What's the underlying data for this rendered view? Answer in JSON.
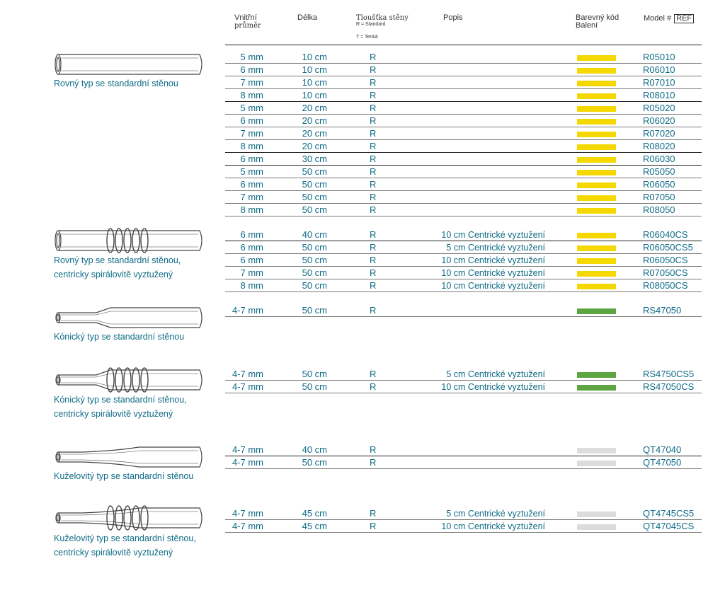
{
  "header": {
    "inner_diameter": [
      "Vnitřní",
      "průměr"
    ],
    "length": "Délka",
    "wall_thickness": "Tloušťka stěny",
    "wall_r": "R = Standard",
    "wall_t": "T = Tenká",
    "description": "Popis",
    "color_code": [
      "Barevný kód",
      "Balení"
    ],
    "model": "Model #",
    "ref": "REF"
  },
  "colors": {
    "yellow": "#f5d800",
    "green": "#5da542",
    "gray": "#dcdcdc",
    "text": "#0e6b86"
  },
  "groups": [
    {
      "icon": "straight-tube-icon",
      "label": [
        "Rovný typ se standardní stěnou"
      ],
      "rows": [
        {
          "dia": "5 mm",
          "len": "10 cm",
          "wall": "R",
          "desc": "",
          "color": "yellow",
          "model": "R05010"
        },
        {
          "dia": "6 mm",
          "len": "10 cm",
          "wall": "R",
          "desc": "",
          "color": "yellow",
          "model": "R06010"
        },
        {
          "dia": "7 mm",
          "len": "10 cm",
          "wall": "R",
          "desc": "",
          "color": "yellow",
          "model": "R07010"
        },
        {
          "dia": "8 mm",
          "len": "10 cm",
          "wall": "R",
          "desc": "",
          "color": "yellow",
          "model": "R08010"
        },
        {
          "dia": "5 mm",
          "len": "20 cm",
          "wall": "R",
          "desc": "",
          "color": "yellow",
          "model": "R05020"
        },
        {
          "dia": "6 mm",
          "len": "20 cm",
          "wall": "R",
          "desc": "",
          "color": "yellow",
          "model": "R06020"
        },
        {
          "dia": "7 mm",
          "len": "20 cm",
          "wall": "R",
          "desc": "",
          "color": "yellow",
          "model": "R07020"
        },
        {
          "dia": "8 mm",
          "len": "20 cm",
          "wall": "R",
          "desc": "",
          "color": "yellow",
          "model": "R08020"
        },
        {
          "dia": "6 mm",
          "len": "30 cm",
          "wall": "R",
          "desc": "",
          "color": "yellow",
          "model": "R06030"
        },
        {
          "dia": "5 mm",
          "len": "50 cm",
          "wall": "R",
          "desc": "",
          "color": "yellow",
          "model": "R05050"
        },
        {
          "dia": "6 mm",
          "len": "50 cm",
          "wall": "R",
          "desc": "",
          "color": "yellow",
          "model": "R06050"
        },
        {
          "dia": "7 mm",
          "len": "50 cm",
          "wall": "R",
          "desc": "",
          "color": "yellow",
          "model": "R07050"
        },
        {
          "dia": "8 mm",
          "len": "50 cm",
          "wall": "R",
          "desc": "",
          "color": "yellow",
          "model": "R08050"
        }
      ]
    },
    {
      "icon": "straight-spiral-tube-icon",
      "label": [
        "Rovný typ se standardní stěnou,",
        "centricky spirálovitě  vyztužený"
      ],
      "rows": [
        {
          "dia": "6 mm",
          "len": "40 cm",
          "wall": "R",
          "desc": "10 cm Centrické vyztužení",
          "color": "yellow",
          "model": "R06040CS"
        },
        {
          "dia": "6 mm",
          "len": "50 cm",
          "wall": "R",
          "desc": "5 cm  Centrické vyztužení",
          "color": "yellow",
          "model": "R06050CS5"
        },
        {
          "dia": "6 mm",
          "len": "50 cm",
          "wall": "R",
          "desc": "10 cm Centrické vyztužení",
          "color": "yellow",
          "model": "R06050CS"
        },
        {
          "dia": "7 mm",
          "len": "50 cm",
          "wall": "R",
          "desc": "10 cm Centrické vyztužení",
          "color": "yellow",
          "model": "R07050CS"
        },
        {
          "dia": "8 mm",
          "len": "50 cm",
          "wall": "R",
          "desc": "10 cm Centrické vyztužení",
          "color": "yellow",
          "model": "R08050CS"
        }
      ]
    },
    {
      "icon": "conical-tube-icon",
      "label": [
        "Kónický typ se standardní stěnou"
      ],
      "rows": [
        {
          "dia": "4-7 mm",
          "len": "50 cm",
          "wall": "R",
          "desc": "",
          "color": "green",
          "model": "RS47050"
        }
      ]
    },
    {
      "icon": "conical-spiral-tube-icon",
      "label": [
        "Kónický typ se standardní stěnou,",
        "centricky spirálovitě vyztužený"
      ],
      "rows": [
        {
          "dia": "4-7 mm",
          "len": "50 cm",
          "wall": "R",
          "desc": "5 cm  Centrické vyztužení",
          "color": "green",
          "model": "RS4750CS5"
        },
        {
          "dia": "4-7 mm",
          "len": "50 cm",
          "wall": "R",
          "desc": "10 cm Centrické vyztužení",
          "color": "green",
          "model": "RS47050CS"
        }
      ]
    },
    {
      "icon": "tapered-tube-icon",
      "label": [
        "Kuželovitý typ se standardní stěnou"
      ],
      "rows": [
        {
          "dia": "4-7 mm",
          "len": "40 cm",
          "wall": "R",
          "desc": "",
          "color": "gray",
          "model": "QT47040"
        },
        {
          "dia": "4-7 mm",
          "len": "50 cm",
          "wall": "R",
          "desc": "",
          "color": "gray",
          "model": "QT47050"
        }
      ]
    },
    {
      "icon": "tapered-spiral-tube-icon",
      "label": [
        "Kuželovitý typ se standardní stěnou,",
        "centricky spirálovitě vyztužený"
      ],
      "rows": [
        {
          "dia": "4-7 mm",
          "len": "45 cm",
          "wall": "R",
          "desc": "5 cm  Centrické vyztužení",
          "color": "gray",
          "model": "QT4745CS5"
        },
        {
          "dia": "4-7 mm",
          "len": "45 cm",
          "wall": "R",
          "desc": "10 cm Centrické vyztužení",
          "color": "gray",
          "model": "QT47045CS"
        }
      ]
    }
  ]
}
